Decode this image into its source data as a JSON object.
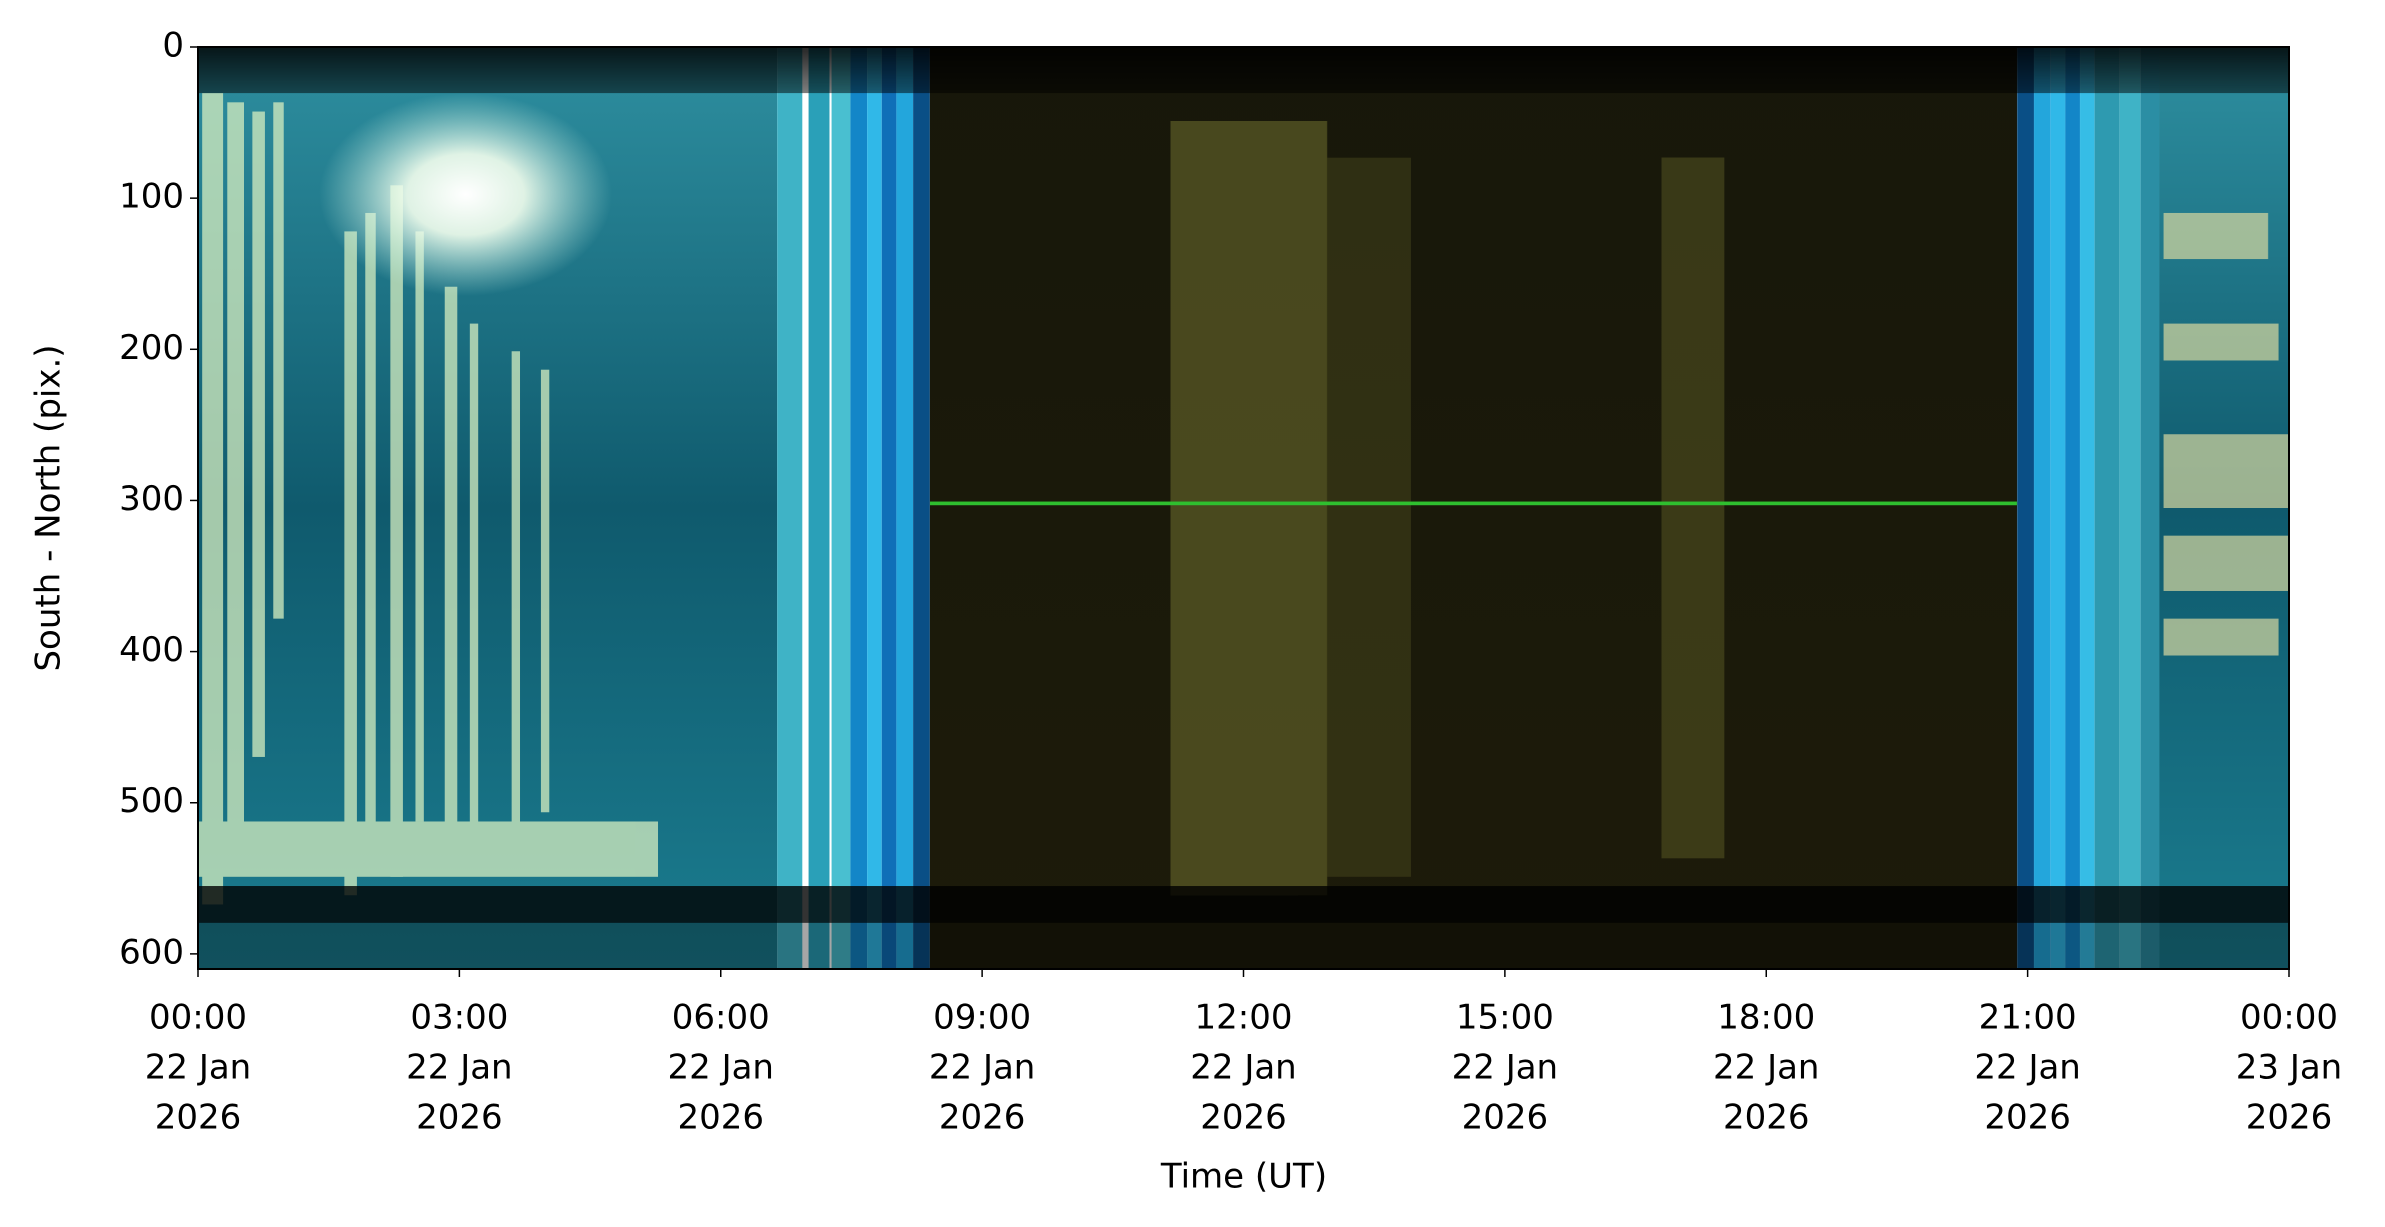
{
  "chart_data": {
    "type": "keogram",
    "xlabel": "Time (UT)",
    "ylabel": "South - North (pix.)",
    "xlim": [
      "2026-01-22T00:00",
      "2026-01-23T00:00"
    ],
    "xticks": [
      {
        "value": "2026-01-22T00:00",
        "label": [
          "00:00",
          "22 Jan",
          "2026"
        ]
      },
      {
        "value": "2026-01-22T03:00",
        "label": [
          "03:00",
          "22 Jan",
          "2026"
        ]
      },
      {
        "value": "2026-01-22T06:00",
        "label": [
          "06:00",
          "22 Jan",
          "2026"
        ]
      },
      {
        "value": "2026-01-22T09:00",
        "label": [
          "09:00",
          "22 Jan",
          "2026"
        ]
      },
      {
        "value": "2026-01-22T12:00",
        "label": [
          "12:00",
          "22 Jan",
          "2026"
        ]
      },
      {
        "value": "2026-01-22T15:00",
        "label": [
          "15:00",
          "22 Jan",
          "2026"
        ]
      },
      {
        "value": "2026-01-22T18:00",
        "label": [
          "18:00",
          "22 Jan",
          "2026"
        ]
      },
      {
        "value": "2026-01-22T21:00",
        "label": [
          "21:00",
          "22 Jan",
          "2026"
        ]
      },
      {
        "value": "2026-01-23T00:00",
        "label": [
          "00:00",
          "23 Jan",
          "2026"
        ]
      }
    ],
    "ylim": [
      610,
      0
    ],
    "yticks": [
      0,
      100,
      200,
      300,
      400,
      500,
      600
    ]
  }
}
